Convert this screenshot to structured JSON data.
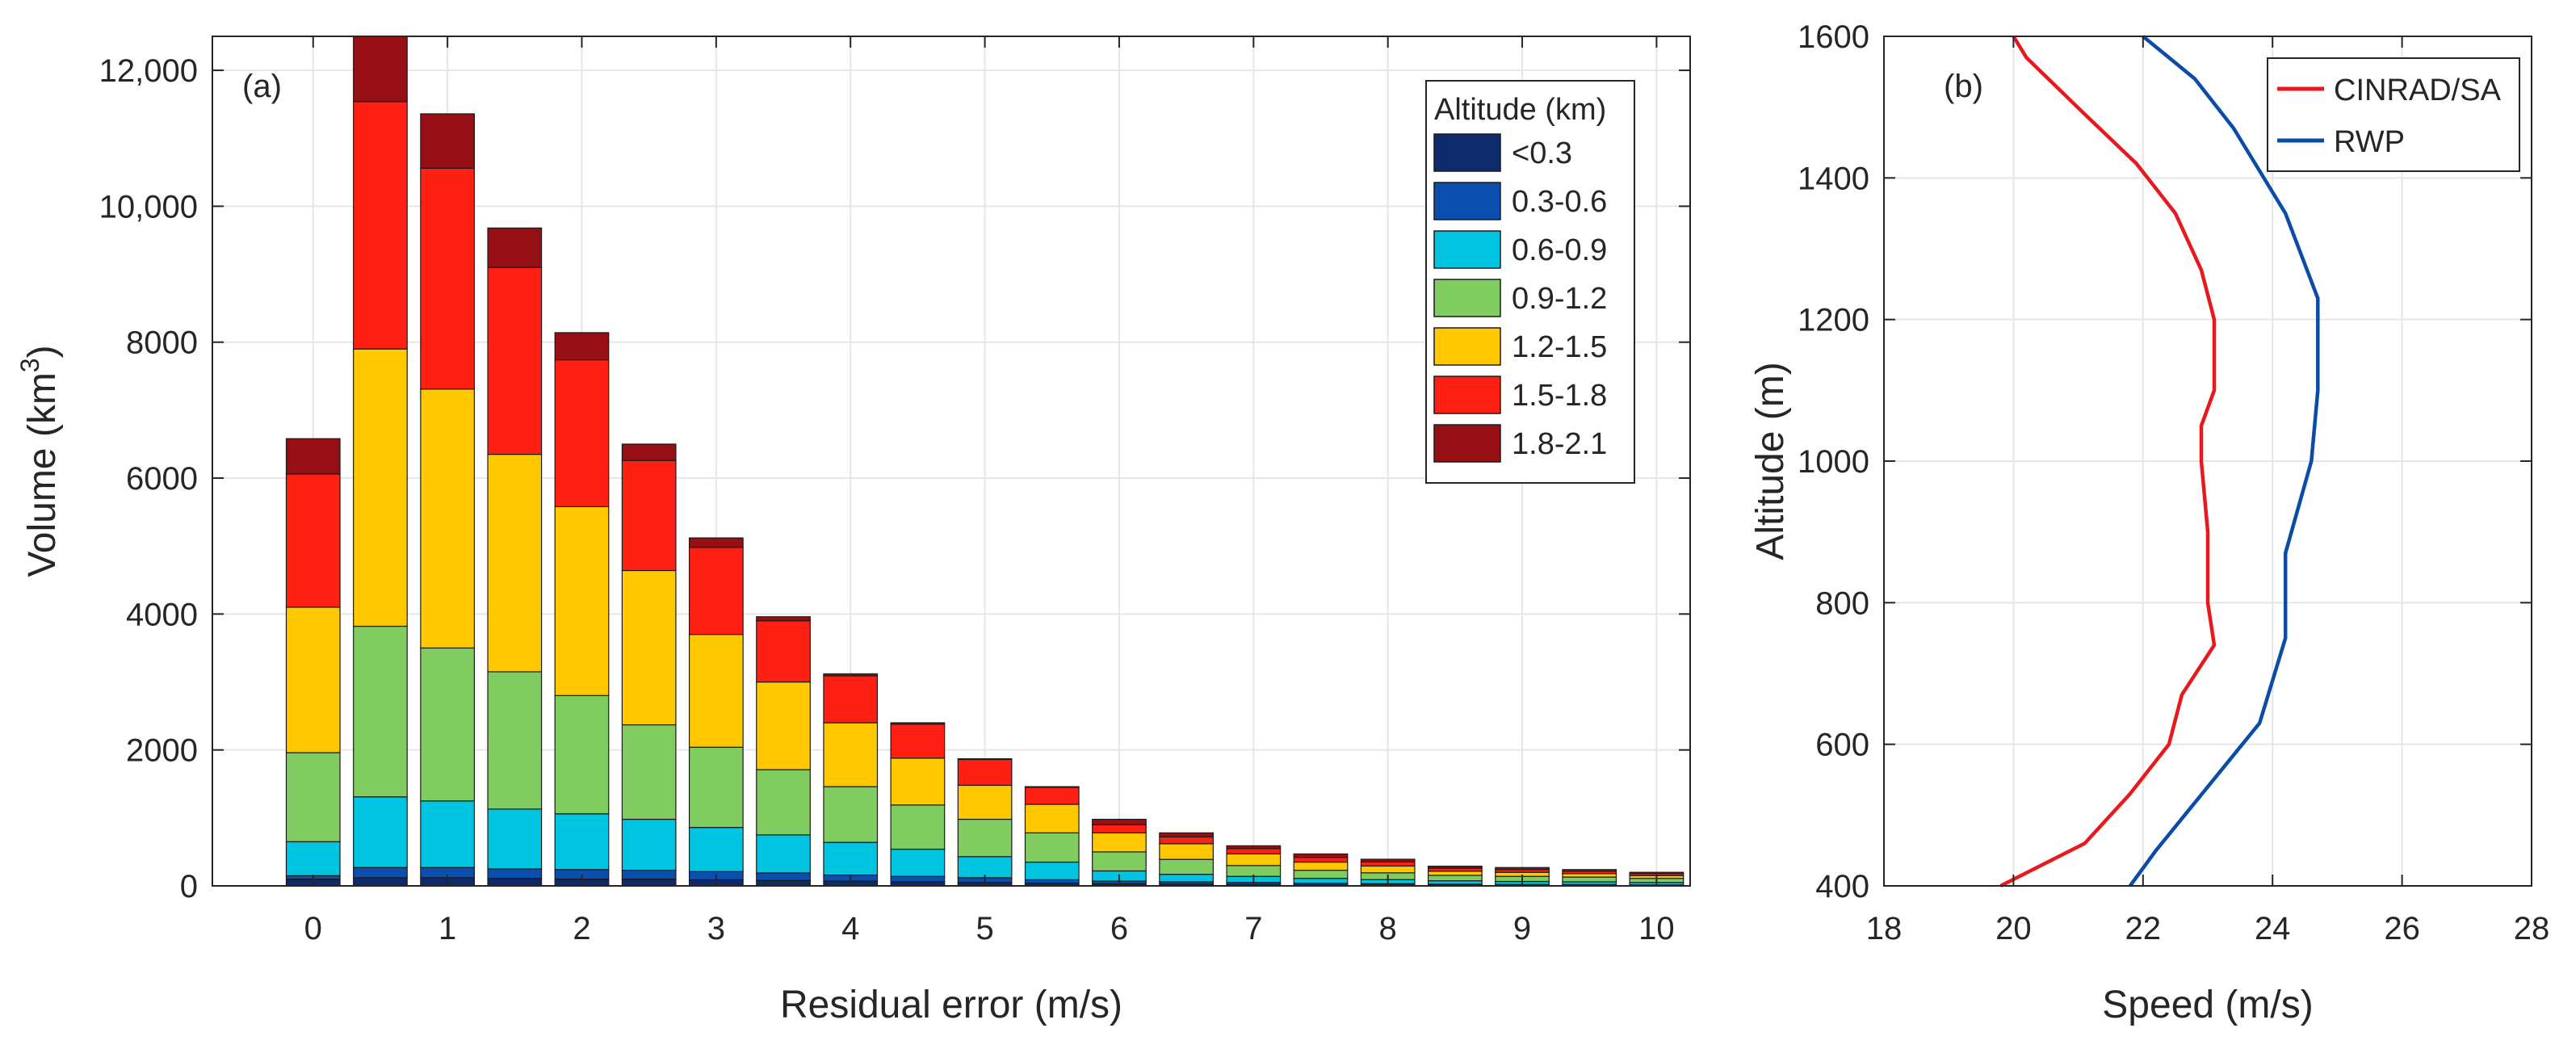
{
  "chart_data": [
    {
      "type": "bar",
      "stacked": true,
      "panel_label": "(a)",
      "xlabel": "Residual error (m/s)",
      "ylabel_prefix": "Volume (km",
      "ylabel_exponent": "3",
      "ylabel_suffix": ")",
      "xlim": [
        -0.75,
        10.25
      ],
      "ylim": [
        0,
        12500
      ],
      "xticks": [
        0,
        1,
        2,
        3,
        4,
        5,
        6,
        7,
        8,
        9,
        10
      ],
      "xtick_labels": [
        "0",
        "1",
        "2",
        "3",
        "4",
        "5",
        "6",
        "7",
        "8",
        "9",
        "10"
      ],
      "yticks": [
        0,
        2000,
        4000,
        6000,
        8000,
        10000,
        12000
      ],
      "ytick_labels": [
        "0",
        "2000",
        "4000",
        "6000",
        "8000",
        "10,000",
        "12,000"
      ],
      "grid": true,
      "legend_title": "Altitude (km)",
      "legend_position": "top-right",
      "x": [
        0,
        0.5,
        1,
        1.5,
        2,
        2.5,
        3,
        3.5,
        4,
        4.5,
        5,
        5.5,
        6,
        6.5,
        7,
        7.5,
        8,
        8.5,
        9,
        9.5,
        10
      ],
      "series": [
        {
          "name": "<0.3",
          "color": "#0e2a6b",
          "values": [
            100,
            120,
            120,
            110,
            100,
            100,
            90,
            80,
            70,
            60,
            50,
            40,
            30,
            25,
            20,
            15,
            12,
            10,
            8,
            8,
            5
          ]
        },
        {
          "name": "0.3-0.6",
          "color": "#0a4fb0",
          "values": [
            50,
            150,
            150,
            140,
            140,
            130,
            120,
            110,
            90,
            80,
            70,
            50,
            40,
            35,
            30,
            25,
            20,
            15,
            12,
            12,
            10
          ]
        },
        {
          "name": "0.6-0.9",
          "color": "#00c4e0",
          "values": [
            500,
            1040,
            980,
            880,
            820,
            750,
            650,
            560,
            480,
            400,
            310,
            260,
            150,
            110,
            90,
            70,
            60,
            50,
            45,
            40,
            35
          ]
        },
        {
          "name": "0.9-1.2",
          "color": "#80cc60",
          "values": [
            1310,
            2510,
            2250,
            2020,
            1740,
            1390,
            1180,
            960,
            820,
            650,
            550,
            430,
            280,
            220,
            160,
            120,
            100,
            80,
            75,
            70,
            60
          ]
        },
        {
          "name": "1.2-1.5",
          "color": "#ffc800",
          "values": [
            2140,
            4080,
            3810,
            3200,
            2780,
            2270,
            1660,
            1290,
            940,
            690,
            500,
            420,
            280,
            230,
            170,
            120,
            100,
            60,
            60,
            50,
            40
          ]
        },
        {
          "name": "1.5-1.8",
          "color": "#ff2014",
          "values": [
            1960,
            3640,
            3250,
            2750,
            2160,
            1620,
            1280,
            900,
            690,
            500,
            380,
            250,
            120,
            100,
            80,
            70,
            60,
            45,
            40,
            35,
            30
          ]
        },
        {
          "name": "1.8-2.1",
          "color": "#960f14",
          "values": [
            520,
            960,
            800,
            580,
            400,
            240,
            140,
            60,
            30,
            20,
            10,
            10,
            80,
            60,
            40,
            50,
            40,
            30,
            30,
            25,
            20
          ]
        }
      ]
    },
    {
      "type": "line",
      "panel_label": "(b)",
      "xlabel": "Speed (m/s)",
      "ylabel": "Altitude (m)",
      "xlim": [
        18,
        28
      ],
      "ylim": [
        400,
        1600
      ],
      "xticks": [
        18,
        20,
        22,
        24,
        26,
        28
      ],
      "xtick_labels": [
        "18",
        "20",
        "22",
        "24",
        "26",
        "28"
      ],
      "yticks": [
        400,
        600,
        800,
        1000,
        1200,
        1400,
        1600
      ],
      "ytick_labels": [
        "400",
        "600",
        "800",
        "1000",
        "1200",
        "1400",
        "1600"
      ],
      "grid": true,
      "legend_position": "top-right",
      "series": [
        {
          "name": "CINRAD/SA",
          "color": "#e8191e",
          "x": [
            19.8,
            21.1,
            21.8,
            22.4,
            22.6,
            23.1,
            23.0,
            23.0,
            22.9,
            22.9,
            23.1,
            23.1,
            22.9,
            22.5,
            21.9,
            21.1,
            20.2,
            20.0
          ],
          "y": [
            400,
            460,
            530,
            600,
            670,
            740,
            800,
            900,
            1000,
            1050,
            1100,
            1200,
            1270,
            1350,
            1420,
            1490,
            1570,
            1600
          ]
        },
        {
          "name": "RWP",
          "color": "#0a4ca8",
          "x": [
            21.8,
            22.2,
            23.0,
            23.8,
            24.2,
            24.2,
            24.6,
            24.7,
            24.7,
            24.2,
            23.4,
            22.8,
            22.0
          ],
          "y": [
            400,
            450,
            540,
            630,
            750,
            870,
            1000,
            1100,
            1230,
            1350,
            1470,
            1540,
            1600
          ]
        }
      ]
    }
  ]
}
